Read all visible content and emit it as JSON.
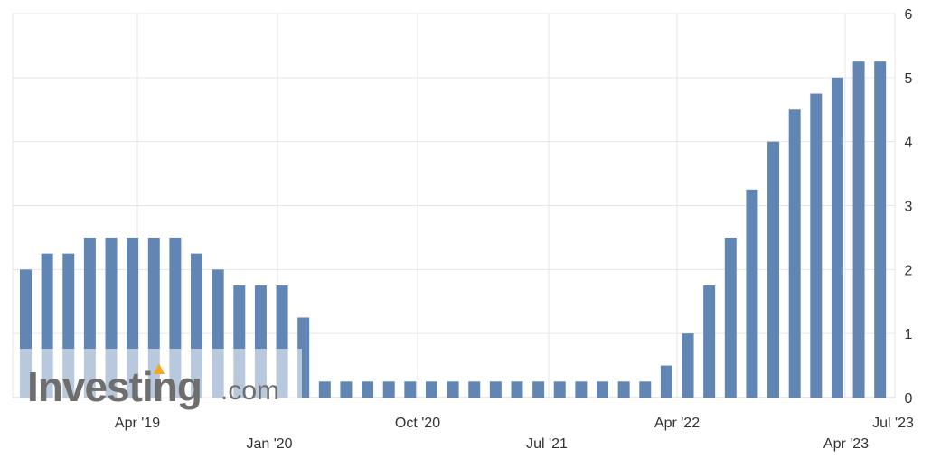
{
  "chart_data": {
    "type": "bar",
    "x_tick_labels": [
      "Apr '19",
      "Jan '20",
      "Oct '20",
      "Jul '21",
      "Apr '22",
      "Apr '23",
      "Jul '23"
    ],
    "y_tick_labels": [
      "0",
      "1",
      "2",
      "3",
      "4",
      "5",
      "6"
    ],
    "ylim": [
      0,
      6
    ],
    "grid": true,
    "y_axis_side": "right",
    "bar_color": "#6286b3",
    "values": [
      2.0,
      2.25,
      2.25,
      2.5,
      2.5,
      2.5,
      2.5,
      2.5,
      2.25,
      2.0,
      1.75,
      1.75,
      1.75,
      1.25,
      0.25,
      0.25,
      0.25,
      0.25,
      0.25,
      0.25,
      0.25,
      0.25,
      0.25,
      0.25,
      0.25,
      0.25,
      0.25,
      0.25,
      0.25,
      0.25,
      0.5,
      1.0,
      1.75,
      2.5,
      3.25,
      4.0,
      4.5,
      4.75,
      5.0,
      5.25,
      5.25
    ]
  },
  "watermark": {
    "brand": "Investing",
    "suffix": ".com",
    "accent_color": "#f5a623"
  }
}
